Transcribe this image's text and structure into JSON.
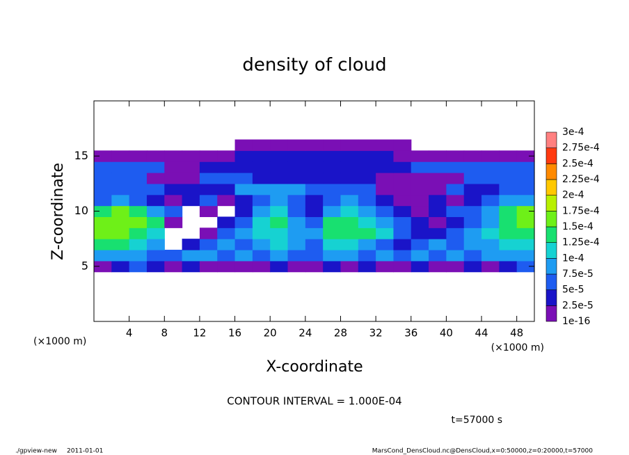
{
  "chart_data": {
    "type": "heatmap",
    "title": "density of cloud",
    "xlabel": "X-coordinate",
    "ylabel": "Z-coordinate",
    "xunit_left": "(×1000 m)",
    "xunit_right": "(×1000 m)",
    "contour_note": "CONTOUR INTERVAL = 1.000E-04",
    "time_note": "t=57000 s",
    "footer_program": "./gpview-new",
    "footer_date": "2011-01-01",
    "footer_source": "MarsCond_DensCloud.nc@DensCloud,x=0:50000,z=0:20000,t=57000",
    "xlim": [
      0,
      50
    ],
    "ylim": [
      0,
      20
    ],
    "xticks": [
      4,
      8,
      12,
      16,
      20,
      24,
      28,
      32,
      36,
      40,
      44,
      48
    ],
    "yticks": [
      5,
      10,
      15
    ],
    "x": [
      1,
      3,
      5,
      7,
      9,
      11,
      13,
      15,
      17,
      19,
      21,
      23,
      25,
      27,
      29,
      31,
      33,
      35,
      37,
      39,
      41,
      43,
      45,
      47,
      49
    ],
    "z": [
      5,
      6,
      7,
      8,
      9,
      10,
      11,
      12,
      13,
      14,
      15,
      16
    ],
    "values": [
      [
        1e-05,
        3.5e-05,
        6e-05,
        3.5e-05,
        1e-05,
        3.5e-05,
        1e-05,
        1e-05,
        1e-05,
        1e-05,
        3.5e-05,
        1e-05,
        1e-05,
        3.5e-05,
        1e-05,
        3.5e-05,
        1e-05,
        1e-05,
        3.5e-05,
        1e-05,
        1e-05,
        3.5e-05,
        1e-05,
        3.5e-05,
        6e-05
      ],
      [
        8.5e-05,
        8.5e-05,
        8.5e-05,
        6e-05,
        6e-05,
        8.5e-05,
        8.5e-05,
        6e-05,
        8.5e-05,
        6e-05,
        8.5e-05,
        6e-05,
        6e-05,
        8.5e-05,
        8.5e-05,
        6e-05,
        8.5e-05,
        6e-05,
        8.5e-05,
        6e-05,
        8.5e-05,
        6e-05,
        8.5e-05,
        8.5e-05,
        8.5e-05
      ],
      [
        0.000135,
        0.000135,
        0.00011,
        8.5e-05,
        null,
        3.5e-05,
        6e-05,
        8.5e-05,
        6e-05,
        8.5e-05,
        0.00011,
        8.5e-05,
        6e-05,
        0.00011,
        0.00011,
        8.5e-05,
        6e-05,
        3.5e-05,
        6e-05,
        8.5e-05,
        6e-05,
        8.5e-05,
        8.5e-05,
        0.00011,
        0.00011
      ],
      [
        0.00016,
        0.00016,
        0.000135,
        0.00011,
        null,
        null,
        1e-05,
        6e-05,
        8.5e-05,
        0.00011,
        0.00011,
        8.5e-05,
        8.5e-05,
        0.000135,
        0.000135,
        0.000135,
        0.00011,
        6e-05,
        3.5e-05,
        3.5e-05,
        6e-05,
        8.5e-05,
        0.00011,
        0.000135,
        0.000135
      ],
      [
        0.00016,
        0.00016,
        0.00016,
        0.000135,
        1e-05,
        null,
        null,
        3.5e-05,
        6e-05,
        0.00011,
        0.000135,
        8.5e-05,
        6e-05,
        0.000135,
        0.000135,
        0.00011,
        8.5e-05,
        6e-05,
        3.5e-05,
        1e-05,
        3.5e-05,
        6e-05,
        8.5e-05,
        0.000135,
        0.00016
      ],
      [
        0.000135,
        0.00016,
        0.000135,
        8.5e-05,
        6e-05,
        null,
        1e-05,
        null,
        3.5e-05,
        8.5e-05,
        0.00011,
        6e-05,
        3.5e-05,
        8.5e-05,
        0.00011,
        8.5e-05,
        6e-05,
        3.5e-05,
        1e-05,
        3.5e-05,
        6e-05,
        6e-05,
        8.5e-05,
        0.000135,
        0.00016
      ],
      [
        6e-05,
        8.5e-05,
        6e-05,
        3.5e-05,
        1e-05,
        3.5e-05,
        6e-05,
        1e-05,
        3.5e-05,
        6e-05,
        8.5e-05,
        6e-05,
        3.5e-05,
        6e-05,
        8.5e-05,
        6e-05,
        3.5e-05,
        1e-05,
        1e-05,
        3.5e-05,
        1e-05,
        3.5e-05,
        6e-05,
        8.5e-05,
        8.5e-05
      ],
      [
        6e-05,
        6e-05,
        6e-05,
        6e-05,
        3.5e-05,
        3.5e-05,
        3.5e-05,
        3.5e-05,
        8.5e-05,
        8.5e-05,
        8.5e-05,
        8.5e-05,
        6e-05,
        6e-05,
        6e-05,
        6e-05,
        1e-05,
        1e-05,
        1e-05,
        1e-05,
        6e-05,
        3.5e-05,
        3.5e-05,
        6e-05,
        6e-05
      ],
      [
        6e-05,
        6e-05,
        6e-05,
        1e-05,
        1e-05,
        1e-05,
        6e-05,
        6e-05,
        6e-05,
        3.5e-05,
        3.5e-05,
        3.5e-05,
        3.5e-05,
        3.5e-05,
        3.5e-05,
        3.5e-05,
        1e-05,
        1e-05,
        1e-05,
        1e-05,
        1e-05,
        6e-05,
        6e-05,
        6e-05,
        6e-05
      ],
      [
        6e-05,
        6e-05,
        6e-05,
        6e-05,
        1e-05,
        1e-05,
        3.5e-05,
        3.5e-05,
        3.5e-05,
        3.5e-05,
        3.5e-05,
        3.5e-05,
        3.5e-05,
        3.5e-05,
        3.5e-05,
        3.5e-05,
        3.5e-05,
        3.5e-05,
        6e-05,
        6e-05,
        6e-05,
        6e-05,
        6e-05,
        6e-05,
        6e-05
      ],
      [
        1e-05,
        1e-05,
        1e-05,
        1e-05,
        1e-05,
        1e-05,
        1e-05,
        1e-05,
        3.5e-05,
        3.5e-05,
        3.5e-05,
        3.5e-05,
        3.5e-05,
        3.5e-05,
        3.5e-05,
        3.5e-05,
        3.5e-05,
        1e-05,
        1e-05,
        1e-05,
        1e-05,
        1e-05,
        1e-05,
        1e-05,
        1e-05
      ],
      [
        null,
        null,
        null,
        null,
        null,
        null,
        null,
        null,
        1e-05,
        1e-05,
        1e-05,
        1e-05,
        1e-05,
        1e-05,
        1e-05,
        1e-05,
        1e-05,
        1e-05,
        null,
        null,
        null,
        null,
        null,
        null,
        null
      ]
    ],
    "levels": [
      1e-16,
      {
        "value": 2.5e-05,
        "label": "2.5e-5"
      },
      {
        "value": 5e-05,
        "label": "5e-5"
      },
      {
        "value": 7.5e-05,
        "label": "7.5e-5"
      },
      {
        "value": 0.0001,
        "label": "1e-4"
      },
      {
        "value": 0.000125,
        "label": "1.25e-4"
      },
      {
        "value": 0.00015,
        "label": "1.5e-4"
      },
      {
        "value": 0.000175,
        "label": "1.75e-4"
      },
      {
        "value": 0.0002,
        "label": "2e-4"
      },
      {
        "value": 0.000225,
        "label": "2.25e-4"
      },
      {
        "value": 0.00025,
        "label": "2.5e-4"
      },
      {
        "value": 0.000275,
        "label": "2.75e-4"
      },
      {
        "value": 0.0003,
        "label": "3e-4"
      }
    ],
    "colors": [
      "#7a0fb5",
      "#1a14c8",
      "#1e5cf0",
      "#1e9cf2",
      "#16d2d2",
      "#18e070",
      "#6ef018",
      "#b8f000",
      "#ffc800",
      "#ff8a00",
      "#ff3a10",
      "#ff8080"
    ]
  }
}
